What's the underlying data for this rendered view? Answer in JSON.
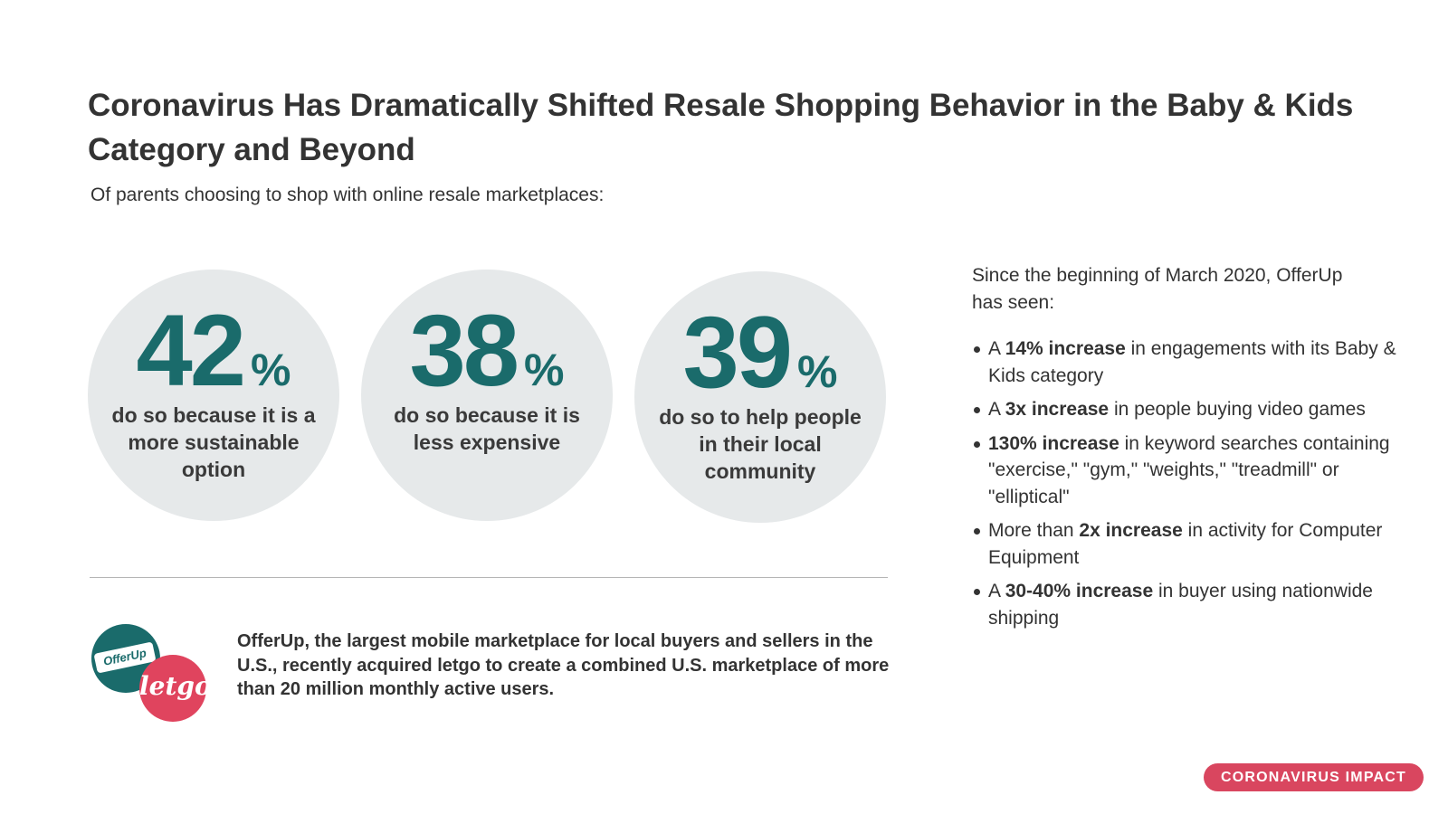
{
  "title": "Coronavirus Has Dramatically Shifted Resale Shopping Behavior in the Baby & Kids Category and Beyond",
  "subtitle": "Of parents choosing to shop with online resale marketplaces:",
  "stats": [
    {
      "value": "42",
      "unit": "%",
      "text": "do so because it is a more sustainable option"
    },
    {
      "value": "38",
      "unit": "%",
      "text": "do so because it is less expensive"
    },
    {
      "value": "39",
      "unit": "%",
      "text": "do so to help people in their local community"
    }
  ],
  "about": "OfferUp, the largest mobile marketplace for local buyers and sellers in the U.S., recently acquired letgo to create a combined U.S. marketplace of more than 20 million monthly active users.",
  "logos": {
    "offerup": "OfferUp",
    "letgo": "letgo"
  },
  "side": {
    "intro": "Since the beginning of March 2020, OfferUp has seen:",
    "bullets": [
      {
        "pre": "A ",
        "bold": "14% increase",
        "post": " in engagements with its Baby & Kids category"
      },
      {
        "pre": "A ",
        "bold": "3x increase",
        "post": " in people buying video games"
      },
      {
        "pre": "",
        "bold": "130% increase",
        "post": " in keyword searches containing \"exercise,\" \"gym,\" \"weights,\" \"treadmill\" or \"elliptical\""
      },
      {
        "pre": "More than ",
        "bold": "2x increase",
        "post": " in activity for Computer Equipment"
      },
      {
        "pre": "A ",
        "bold": "30-40% increase",
        "post": " in buyer using  nationwide shipping"
      }
    ]
  },
  "badge": "CORONAVIRUS IMPACT",
  "colors": {
    "teal": "#1a6b6b",
    "circle": "#e6e9ea",
    "badge": "#d9465f",
    "letgo": "#e0445e"
  }
}
